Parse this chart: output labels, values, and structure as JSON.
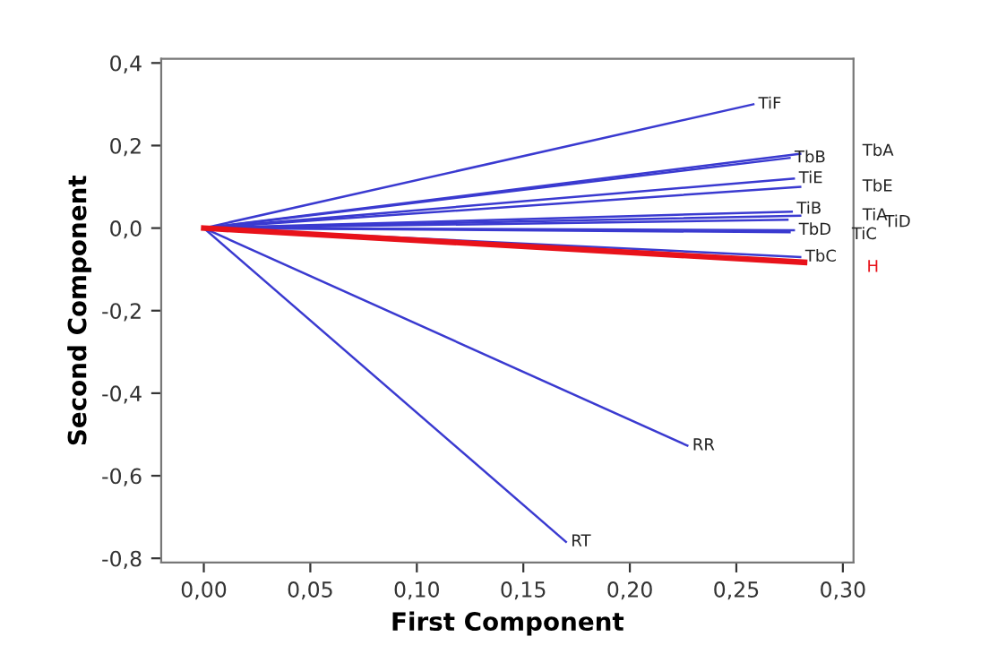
{
  "chart_data": {
    "type": "line",
    "xlabel": "First Component",
    "ylabel": "Second Component",
    "xlim": [
      -0.02,
      0.305
    ],
    "ylim": [
      -0.81,
      0.41
    ],
    "xticks": [
      {
        "value": 0,
        "label": "0,00"
      },
      {
        "value": 0.05,
        "label": "0,05"
      },
      {
        "value": 0.1,
        "label": "0,10"
      },
      {
        "value": 0.15,
        "label": "0,15"
      },
      {
        "value": 0.2,
        "label": "0,20"
      },
      {
        "value": 0.25,
        "label": "0,25"
      },
      {
        "value": 0.3,
        "label": "0,30"
      }
    ],
    "yticks": [
      {
        "value": 0.4,
        "label": "0,4"
      },
      {
        "value": 0.2,
        "label": "0,2"
      },
      {
        "value": 0,
        "label": "0,0"
      },
      {
        "value": -0.2,
        "label": "-0,2"
      },
      {
        "value": -0.4,
        "label": "-0,4"
      },
      {
        "value": -0.6,
        "label": "-0,6"
      },
      {
        "value": -0.8,
        "label": "-0,8"
      }
    ],
    "grid": false,
    "legend": false,
    "marker": "none",
    "line_style": "solid",
    "series": [
      {
        "name": "TiF",
        "color": "#3a3ad0",
        "x": [
          0,
          0.258
        ],
        "values": [
          0,
          0.3
        ]
      },
      {
        "name": "TbB",
        "color": "#3a3ad0",
        "x": [
          0,
          0.275
        ],
        "values": [
          0,
          0.17
        ]
      },
      {
        "name": "TbA",
        "color": "#3a3ad0",
        "x": [
          0,
          0.28
        ],
        "values": [
          0,
          0.18
        ]
      },
      {
        "name": "TiE",
        "color": "#3a3ad0",
        "x": [
          0,
          0.277
        ],
        "values": [
          0,
          0.12
        ]
      },
      {
        "name": "TbE",
        "color": "#3a3ad0",
        "x": [
          0,
          0.28
        ],
        "values": [
          0,
          0.1
        ]
      },
      {
        "name": "TiB",
        "color": "#3a3ad0",
        "x": [
          0,
          0.276
        ],
        "values": [
          0,
          0.04
        ]
      },
      {
        "name": "TiA",
        "color": "#3a3ad0",
        "x": [
          0,
          0.28
        ],
        "values": [
          0,
          0.03
        ]
      },
      {
        "name": "TiD",
        "color": "#3a3ad0",
        "x": [
          0,
          0.274
        ],
        "values": [
          0,
          0.02
        ]
      },
      {
        "name": "TbD",
        "color": "#3a3ad0",
        "x": [
          0,
          0.277
        ],
        "values": [
          0,
          -0.005
        ]
      },
      {
        "name": "TiC",
        "color": "#3a3ad0",
        "x": [
          0,
          0.275
        ],
        "values": [
          0,
          -0.01
        ]
      },
      {
        "name": "TbC",
        "color": "#3a3ad0",
        "x": [
          0,
          0.28
        ],
        "values": [
          0,
          -0.07
        ]
      },
      {
        "name": "H",
        "color": "#e8121a",
        "x": [
          0,
          0.282
        ],
        "values": [
          0,
          -0.083
        ]
      },
      {
        "name": "RR",
        "color": "#3a3ad0",
        "x": [
          0,
          0.227
        ],
        "values": [
          0,
          -0.527
        ]
      },
      {
        "name": "RT",
        "color": "#3a3ad0",
        "x": [
          0,
          0.17
        ],
        "values": [
          0,
          -0.76
        ]
      }
    ]
  }
}
